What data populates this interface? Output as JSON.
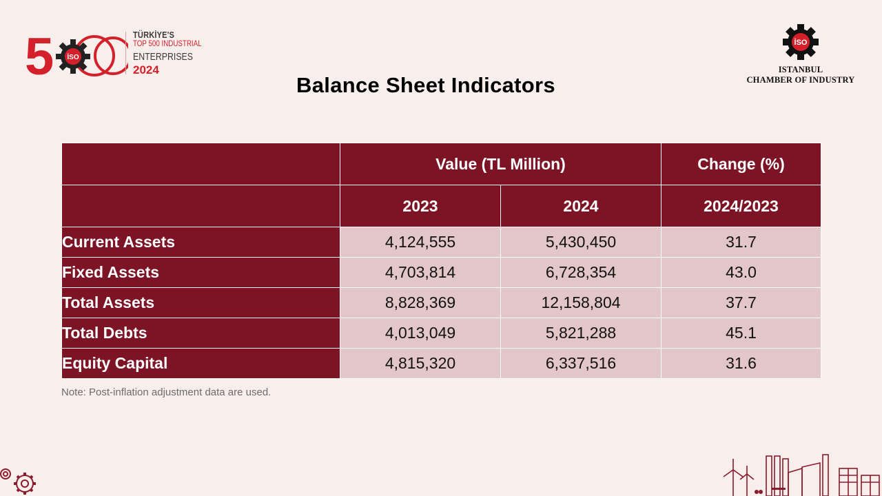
{
  "logo": {
    "number": "500",
    "line1": "TÜRKİYE'S",
    "line2": "TOP 500 INDUSTRIAL",
    "line3": "ENTERPRISES",
    "year": "2024",
    "emblem_text": "İSO"
  },
  "org": {
    "emblem_text": "İSO",
    "name_line1": "ISTANBUL",
    "name_line2": "CHAMBER OF INDUSTRY"
  },
  "title": "Balance Sheet Indicators",
  "table": {
    "group_headers": [
      "Value (TL Million)",
      "Change (%)"
    ],
    "sub_headers": [
      "2023",
      "2024",
      "2024/2023"
    ],
    "rows": [
      {
        "label": "Current Assets",
        "v2023": "4,124,555",
        "v2024": "5,430,450",
        "change": "31.7"
      },
      {
        "label": "Fixed Assets",
        "v2023": "4,703,814",
        "v2024": "6,728,354",
        "change": "43.0"
      },
      {
        "label": "Total Assets",
        "v2023": "8,828,369",
        "v2024": "12,158,804",
        "change": "37.7"
      },
      {
        "label": "Total Debts",
        "v2023": "4,013,049",
        "v2024": "5,821,288",
        "change": "45.1"
      },
      {
        "label": "Equity Capital",
        "v2023": "4,815,320",
        "v2024": "6,337,516",
        "change": "31.6"
      }
    ]
  },
  "note": "Note: Post-inflation adjustment data are used.",
  "colors": {
    "background": "#f8efed",
    "header_maroon": "#7d1426",
    "cell_pink": "#e3c6c8",
    "brand_red": "#d4202a"
  },
  "icons": [
    "gear-icon",
    "iso-emblem-icon",
    "gears-decoration",
    "industrial-skyline-decoration"
  ]
}
